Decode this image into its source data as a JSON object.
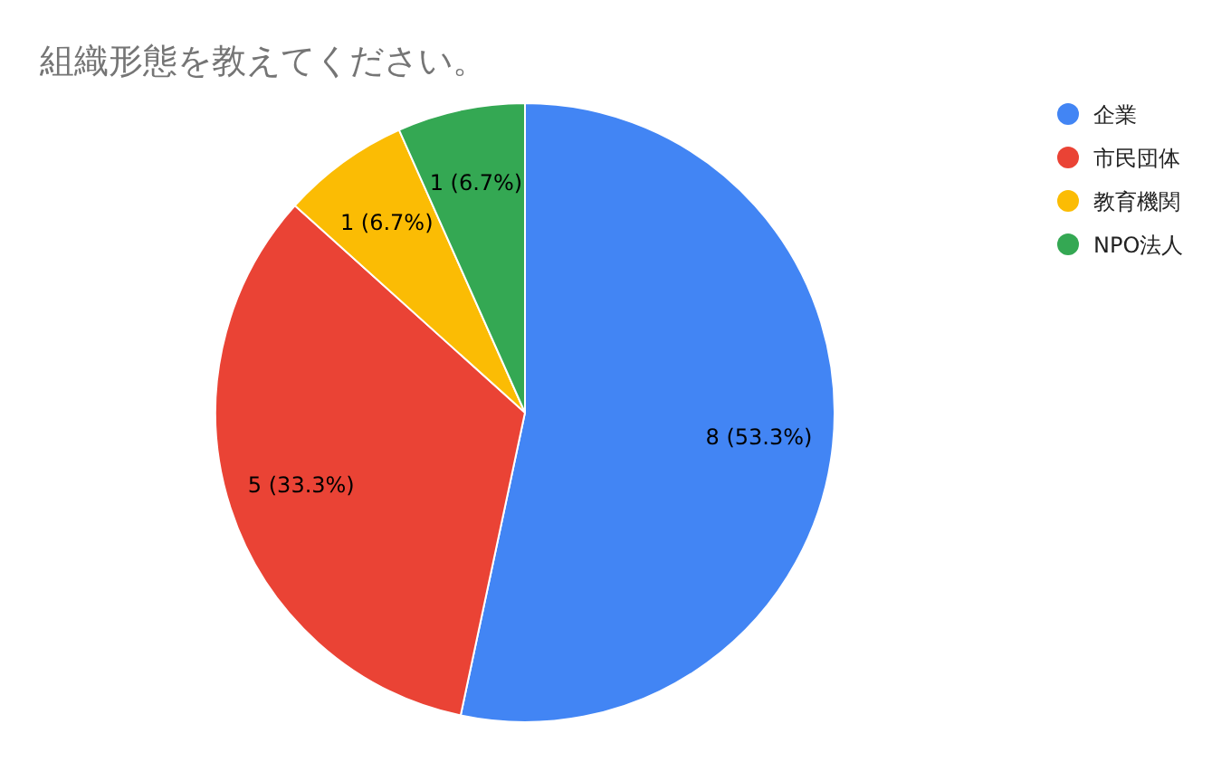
{
  "chart_data": {
    "type": "pie",
    "title": "組織形態を教えてください。",
    "categories": [
      "企業",
      "市民団体",
      "教育機関",
      "NPO法人"
    ],
    "values": [
      8,
      5,
      1,
      1
    ],
    "colors": [
      "#4285f4",
      "#ea4335",
      "#fbbc04",
      "#34a853"
    ],
    "value_labels": [
      "8 (53.3%)",
      "5 (33.3%)",
      "1 (6.7%)",
      "1 (6.7%)"
    ],
    "legend": "top right"
  }
}
